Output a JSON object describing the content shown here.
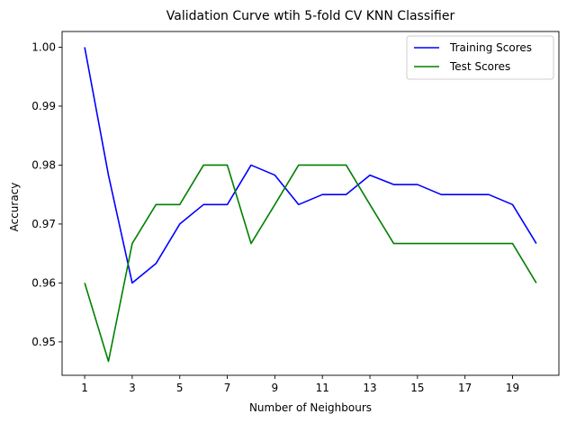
{
  "chart_data": {
    "type": "line",
    "title": "Validation Curve wtih 5-fold CV KNN Classifier",
    "xlabel": "Number of Neighbours",
    "ylabel": "Accuracy",
    "x": [
      1,
      2,
      3,
      4,
      5,
      6,
      7,
      8,
      9,
      10,
      11,
      12,
      13,
      14,
      15,
      16,
      17,
      18,
      19,
      20
    ],
    "xticks": [
      1,
      3,
      5,
      7,
      9,
      11,
      13,
      15,
      17,
      19
    ],
    "yticks": [
      0.95,
      0.96,
      0.97,
      0.98,
      0.99,
      1.0
    ],
    "ytick_labels": [
      "0.95",
      "0.96",
      "0.97",
      "0.98",
      "0.99",
      "1.00"
    ],
    "xlim": [
      0.05,
      20.95
    ],
    "ylim": [
      0.94433,
      1.00267
    ],
    "grid": false,
    "legend_position": "top-right",
    "series": [
      {
        "name": "Training Scores",
        "color": "#0000ff",
        "values": [
          1.0,
          0.9783,
          0.96,
          0.9633,
          0.97,
          0.9733,
          0.9733,
          0.98,
          0.9783,
          0.9733,
          0.975,
          0.975,
          0.9783,
          0.9767,
          0.9767,
          0.975,
          0.975,
          0.975,
          0.9733,
          0.9667
        ]
      },
      {
        "name": "Test Scores",
        "color": "#008000",
        "values": [
          0.96,
          0.9467,
          0.9667,
          0.9733,
          0.9733,
          0.98,
          0.98,
          0.9667,
          0.9733,
          0.98,
          0.98,
          0.98,
          0.9733,
          0.9667,
          0.9667,
          0.9667,
          0.9667,
          0.9667,
          0.9667,
          0.96
        ]
      }
    ]
  }
}
